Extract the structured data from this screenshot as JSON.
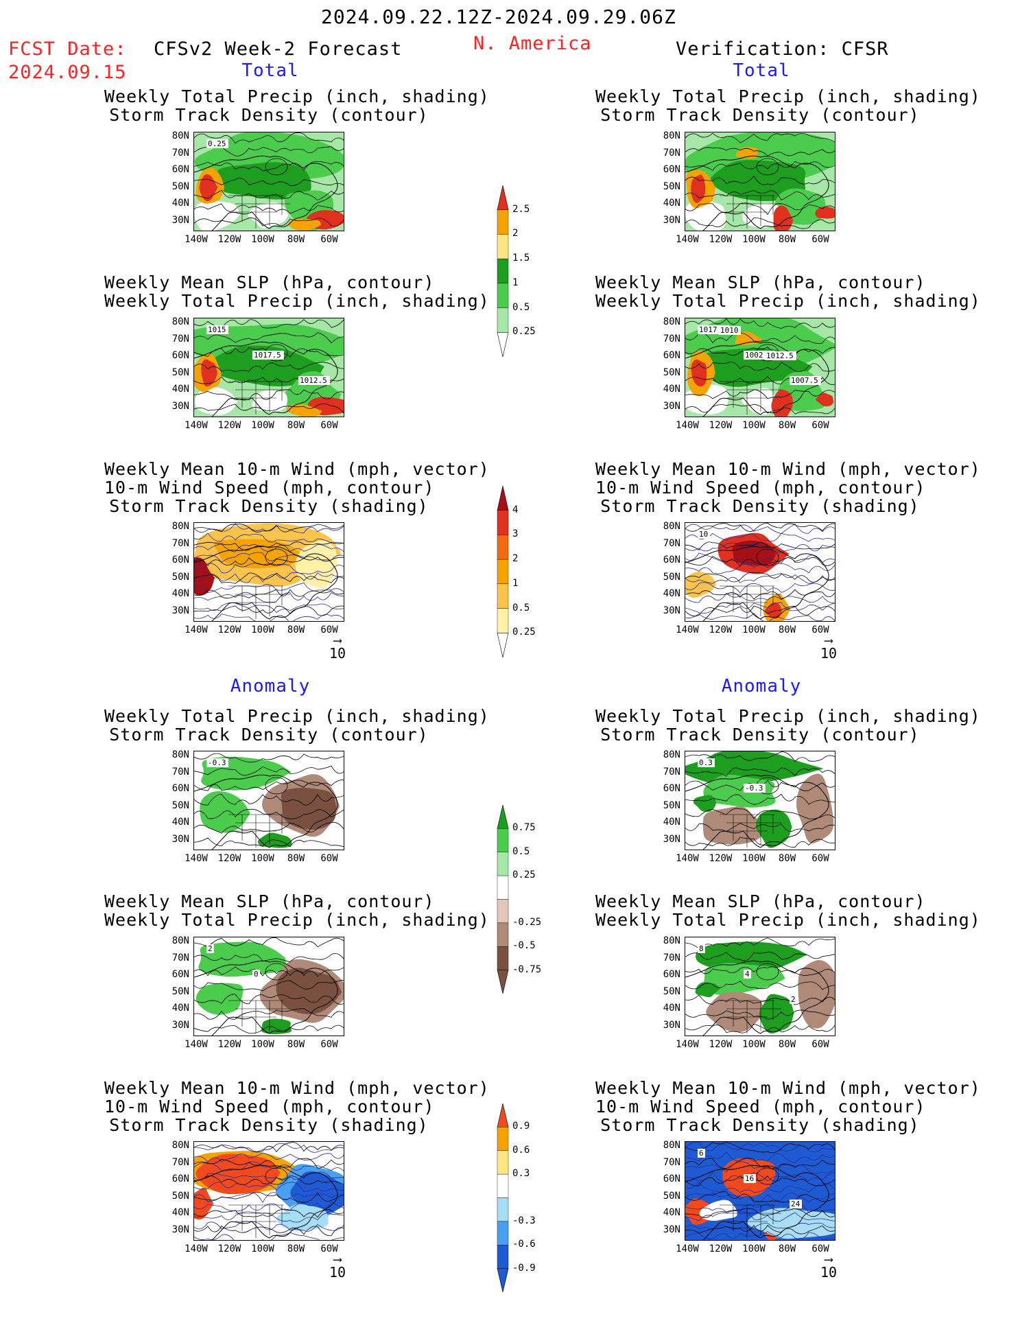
{
  "header": {
    "date_range": "2024.09.22.12Z-2024.09.29.06Z",
    "fcst_label": "FCST Date:",
    "fcst_date": "2024.09.15",
    "model_title": "CFSv2 Week-2 Forecast",
    "region": "N. America",
    "verification": "Verification: CFSR"
  },
  "sections": {
    "total": "Total",
    "anomaly": "Anomaly"
  },
  "titles": {
    "precip_storm": [
      "Weekly Total Precip (inch, shading)",
      "Storm Track Density (contour)"
    ],
    "slp_precip": [
      "Weekly Mean SLP (hPa, contour)",
      "Weekly Total Precip (inch, shading)"
    ],
    "wind_storm": [
      "Weekly Mean 10-m Wind (mph, vector)",
      "10-m Wind Speed (mph, contour)",
      "Storm Track Density (shading)"
    ]
  },
  "axes": {
    "lat_ticks": [
      "80N",
      "70N",
      "60N",
      "50N",
      "40N",
      "30N"
    ],
    "lon_ticks": [
      "140W",
      "120W",
      "100W",
      "80W",
      "60W"
    ]
  },
  "vector_ref": "10",
  "colorbars": {
    "precip_total": {
      "labels": [
        "2.5",
        "2",
        "1.5",
        "1",
        "0.5",
        "0.25"
      ],
      "colors": [
        "#e0301e",
        "#f5a300",
        "#ffe680",
        "#1e9e1e",
        "#4ccc4c",
        "#a6e6a6"
      ]
    },
    "storm_total": {
      "labels": [
        "4",
        "3",
        "2",
        "1",
        "0.5",
        "0.25"
      ],
      "colors": [
        "#a50f15",
        "#e0301e",
        "#f26b0f",
        "#f5a300",
        "#fcc44a",
        "#fff2a8"
      ]
    },
    "precip_anom": {
      "labels": [
        "0.75",
        "0.5",
        "0.25",
        "-0.25",
        "-0.5",
        "-0.75"
      ],
      "colors": [
        "#1e9e1e",
        "#4ccc4c",
        "#a6e6a6",
        "#ffffff",
        "#e6c6b8",
        "#b08a78",
        "#7a5040"
      ]
    },
    "storm_anom": {
      "labels": [
        "0.9",
        "0.6",
        "0.3",
        "-0.3",
        "-0.6",
        "-0.9"
      ],
      "colors": [
        "#f04a1e",
        "#f5a300",
        "#ffe680",
        "#ffffff",
        "#a8def5",
        "#4aa0f0",
        "#1e5ad2"
      ]
    }
  },
  "contour_labels": {
    "r1_left": [
      "0.25"
    ],
    "r2_left": [
      "1015",
      "1017.5",
      "1012.5"
    ],
    "r2_right": [
      "1017.5",
      "1002.5",
      "1007.5",
      "1010",
      "1012.5"
    ],
    "r3_right": [
      "10"
    ],
    "r4_left": [
      "-0.3"
    ],
    "r4_right": [
      "0.3",
      "-0.3"
    ],
    "r5_left": [
      "2",
      "0"
    ],
    "r5_right": [
      "8",
      "4",
      "2"
    ],
    "r6_right": [
      "6",
      "16",
      "24"
    ]
  }
}
